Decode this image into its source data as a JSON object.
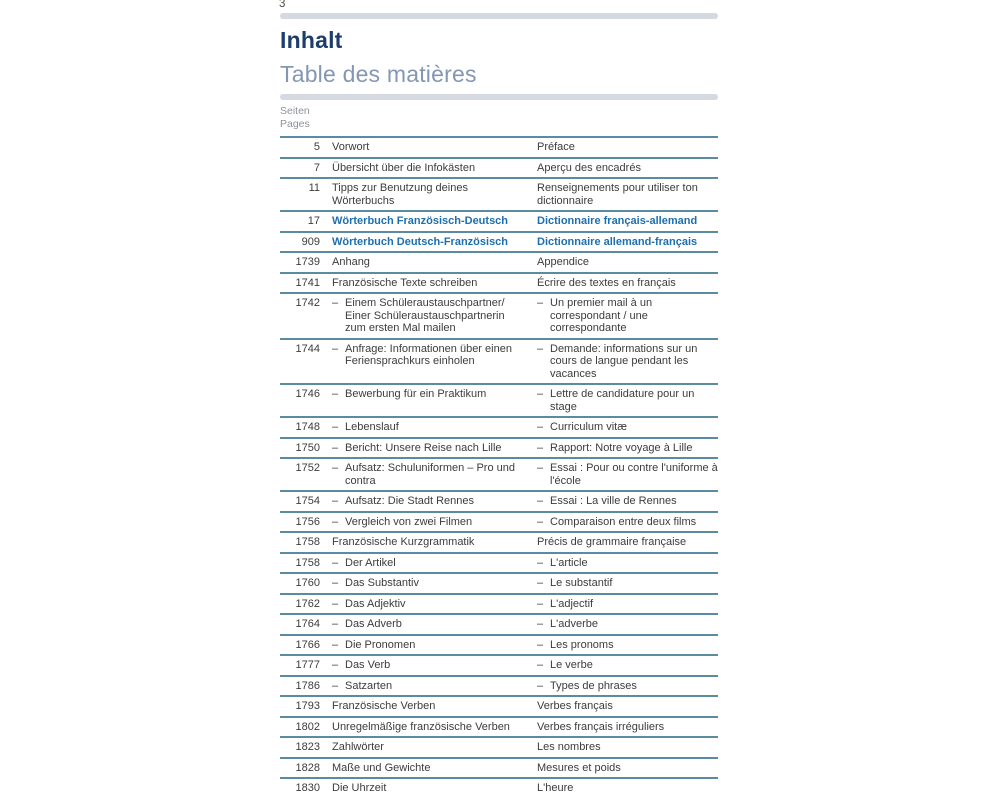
{
  "page": {
    "folio": "3",
    "heading_de": "Inhalt",
    "heading_fr": "Table des matières",
    "col_header_line1": "Seiten",
    "col_header_line2": "Pages"
  },
  "colors": {
    "heading_de": "#1d3e6d",
    "heading_fr": "#8396b4",
    "divider_bar": "#d5d9e1",
    "table_rule": "#5a8ba1",
    "emphasis_blue": "#1e6fae",
    "body_text": "#3c3c3c",
    "muted_gray": "#8e9399"
  },
  "toc": {
    "marker": "–",
    "rows": [
      {
        "page": "5",
        "de": "Vorwort",
        "fr": "Préface",
        "sub": false,
        "emphasis": false
      },
      {
        "page": "7",
        "de": "Übersicht über die Infokästen",
        "fr": "Aperçu des encadrés",
        "sub": false,
        "emphasis": false
      },
      {
        "page": "11",
        "de": "Tipps zur Benutzung deines Wörterbuchs",
        "fr": "Renseignements pour utiliser ton dictionnaire",
        "sub": false,
        "emphasis": false
      },
      {
        "page": "17",
        "de": "Wörterbuch Französisch-Deutsch",
        "fr": "Dictionnaire français-allemand",
        "sub": false,
        "emphasis": true
      },
      {
        "page": "909",
        "de": "Wörterbuch Deutsch-Französisch",
        "fr": "Dictionnaire allemand-français",
        "sub": false,
        "emphasis": true
      },
      {
        "page": "1739",
        "de": "Anhang",
        "fr": "Appendice",
        "sub": false,
        "emphasis": false
      },
      {
        "page": "1741",
        "de": "Französische Texte schreiben",
        "fr": "Écrire des textes en français",
        "sub": false,
        "emphasis": false
      },
      {
        "page": "1742",
        "de": "Einem Schüleraustauschpartner/ Einer Schüleraustauschpartnerin zum ersten Mal mailen",
        "fr": "Un premier mail à un correspondant / une correspondante",
        "sub": true,
        "emphasis": false
      },
      {
        "page": "1744",
        "de": "Anfrage: Informationen über einen Feriensprachkurs einholen",
        "fr": "Demande: informations sur un cours de langue pendant les vacances",
        "sub": true,
        "emphasis": false
      },
      {
        "page": "1746",
        "de": "Bewerbung für ein Praktikum",
        "fr": "Lettre de candidature pour un stage",
        "sub": true,
        "emphasis": false
      },
      {
        "page": "1748",
        "de": "Lebenslauf",
        "fr": "Curriculum vitæ",
        "sub": true,
        "emphasis": false
      },
      {
        "page": "1750",
        "de": "Bericht: Unsere Reise nach Lille",
        "fr": "Rapport: Notre voyage à Lille",
        "sub": true,
        "emphasis": false
      },
      {
        "page": "1752",
        "de": "Aufsatz: Schuluniformen – Pro und contra",
        "fr": "Essai : Pour ou contre l'uniforme à l'école",
        "sub": true,
        "emphasis": false
      },
      {
        "page": "1754",
        "de": "Aufsatz: Die Stadt Rennes",
        "fr": "Essai : La ville de Rennes",
        "sub": true,
        "emphasis": false
      },
      {
        "page": "1756",
        "de": "Vergleich von zwei Filmen",
        "fr": "Comparaison entre deux films",
        "sub": true,
        "emphasis": false
      },
      {
        "page": "1758",
        "de": "Französische Kurzgrammatik",
        "fr": "Précis de grammaire française",
        "sub": false,
        "emphasis": false
      },
      {
        "page": "1758",
        "de": "Der Artikel",
        "fr": "L'article",
        "sub": true,
        "emphasis": false
      },
      {
        "page": "1760",
        "de": "Das Substantiv",
        "fr": "Le substantif",
        "sub": true,
        "emphasis": false
      },
      {
        "page": "1762",
        "de": "Das Adjektiv",
        "fr": "L'adjectif",
        "sub": true,
        "emphasis": false
      },
      {
        "page": "1764",
        "de": "Das Adverb",
        "fr": "L'adverbe",
        "sub": true,
        "emphasis": false
      },
      {
        "page": "1766",
        "de": "Die Pronomen",
        "fr": "Les pronoms",
        "sub": true,
        "emphasis": false
      },
      {
        "page": "1777",
        "de": "Das Verb",
        "fr": "Le verbe",
        "sub": true,
        "emphasis": false
      },
      {
        "page": "1786",
        "de": "Satzarten",
        "fr": "Types de phrases",
        "sub": true,
        "emphasis": false
      },
      {
        "page": "1793",
        "de": "Französische Verben",
        "fr": "Verbes français",
        "sub": false,
        "emphasis": false
      },
      {
        "page": "1802",
        "de": "Unregelmäßige französische Verben",
        "fr": "Verbes français irréguliers",
        "sub": false,
        "emphasis": false
      },
      {
        "page": "1823",
        "de": "Zahlwörter",
        "fr": "Les nombres",
        "sub": false,
        "emphasis": false
      },
      {
        "page": "1828",
        "de": "Maße und Gewichte",
        "fr": "Mesures et poids",
        "sub": false,
        "emphasis": false
      },
      {
        "page": "1830",
        "de": "Die Uhrzeit",
        "fr": "L'heure",
        "sub": false,
        "emphasis": false
      }
    ]
  }
}
